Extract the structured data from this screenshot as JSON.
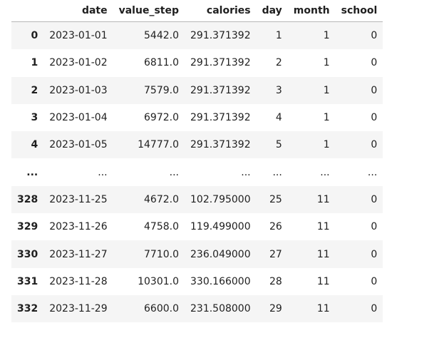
{
  "table": {
    "index_header": "",
    "columns": [
      "date",
      "value_step",
      "calories",
      "day",
      "month",
      "school"
    ],
    "rows": [
      {
        "index": "0",
        "cells": [
          "2023-01-01",
          "5442.0",
          "291.371392",
          "1",
          "1",
          "0"
        ]
      },
      {
        "index": "1",
        "cells": [
          "2023-01-02",
          "6811.0",
          "291.371392",
          "2",
          "1",
          "0"
        ]
      },
      {
        "index": "2",
        "cells": [
          "2023-01-03",
          "7579.0",
          "291.371392",
          "3",
          "1",
          "0"
        ]
      },
      {
        "index": "3",
        "cells": [
          "2023-01-04",
          "6972.0",
          "291.371392",
          "4",
          "1",
          "0"
        ]
      },
      {
        "index": "4",
        "cells": [
          "2023-01-05",
          "14777.0",
          "291.371392",
          "5",
          "1",
          "0"
        ]
      },
      {
        "index": "...",
        "cells": [
          "...",
          "...",
          "...",
          "...",
          "...",
          "..."
        ]
      },
      {
        "index": "328",
        "cells": [
          "2023-11-25",
          "4672.0",
          "102.795000",
          "25",
          "11",
          "0"
        ]
      },
      {
        "index": "329",
        "cells": [
          "2023-11-26",
          "4758.0",
          "119.499000",
          "26",
          "11",
          "0"
        ]
      },
      {
        "index": "330",
        "cells": [
          "2023-11-27",
          "7710.0",
          "236.049000",
          "27",
          "11",
          "0"
        ]
      },
      {
        "index": "331",
        "cells": [
          "2023-11-28",
          "10301.0",
          "330.166000",
          "28",
          "11",
          "0"
        ]
      },
      {
        "index": "332",
        "cells": [
          "2023-11-29",
          "6600.0",
          "231.508000",
          "29",
          "11",
          "0"
        ]
      }
    ]
  }
}
